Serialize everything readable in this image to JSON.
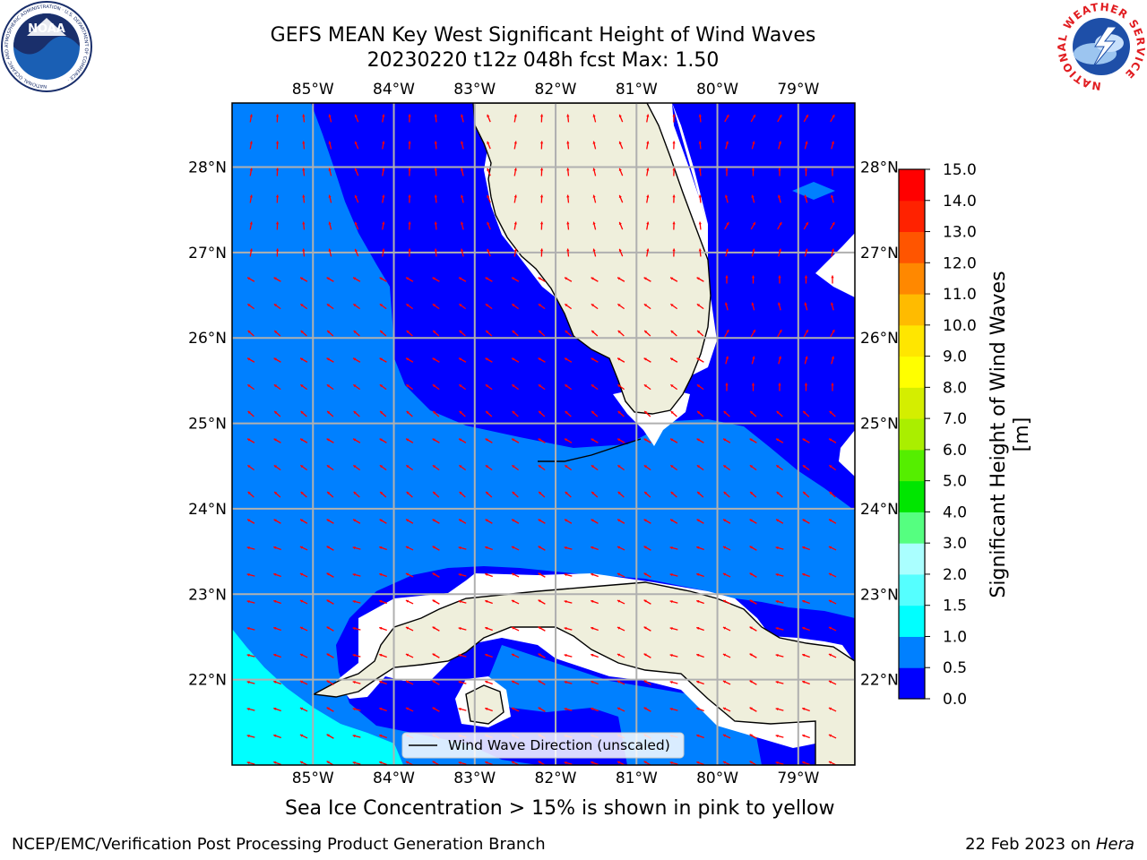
{
  "title": {
    "line1": "GEFS MEAN Key West Significant Height of Wind Waves",
    "line2": "20230220 t12z 048h fcst   Max: 1.50"
  },
  "map": {
    "lon_labels": [
      "85°W",
      "84°W",
      "83°W",
      "82°W",
      "81°W",
      "80°W",
      "79°W"
    ],
    "lon_values": [
      -85,
      -84,
      -83,
      -82,
      -81,
      -80,
      -79
    ],
    "lat_labels": [
      "28°N",
      "27°N",
      "26°N",
      "25°N",
      "24°N",
      "23°N",
      "22°N"
    ],
    "lat_values": [
      28,
      27,
      26,
      25,
      24,
      23,
      22
    ],
    "lon_range": [
      -86.0,
      -78.3
    ],
    "lat_range": [
      21.0,
      28.75
    ],
    "legend_label": "Wind Wave Direction (unscaled)",
    "colors": {
      "level_0_0p5": "#0000ff",
      "level_0p5_1": "#0080ff",
      "level_1_1p5": "#00ffff",
      "land": "#efefdc",
      "no_data": "#ffffff",
      "arrow": "#ff0000",
      "grid": "#b0b0b0"
    }
  },
  "colorbar": {
    "label": "Significant Height of Wind Waves [m]",
    "ticks": [
      "0.0",
      "0.5",
      "1.0",
      "1.5",
      "2.0",
      "3.0",
      "4.0",
      "5.0",
      "6.0",
      "7.0",
      "8.0",
      "9.0",
      "10.0",
      "11.0",
      "12.0",
      "13.0",
      "14.0",
      "15.0"
    ],
    "colors": [
      "#0000ff",
      "#0080ff",
      "#00ffff",
      "#55ffff",
      "#aaffff",
      "#55ff80",
      "#00e600",
      "#55ee00",
      "#aaee00",
      "#d4ee00",
      "#ffff00",
      "#ffe600",
      "#ffbb00",
      "#ff8800",
      "#ff5500",
      "#ff2200",
      "#ff0000"
    ]
  },
  "note": "Sea Ice Concentration > 15% is shown in pink to yellow",
  "footer": {
    "left": "NCEP/EMC/Verification Post Processing Product Generation Branch",
    "date": "22 Feb 2023 on ",
    "host": "Hera"
  },
  "logos": {
    "noaa_text": "NOAA",
    "noaa_ring": "NATIONAL OCEANIC AND ATMOSPHERIC ADMINISTRATION · U.S. DEPARTMENT OF COMMERCE ·",
    "nws_ring": "NATIONAL WEATHER SERVICE"
  }
}
